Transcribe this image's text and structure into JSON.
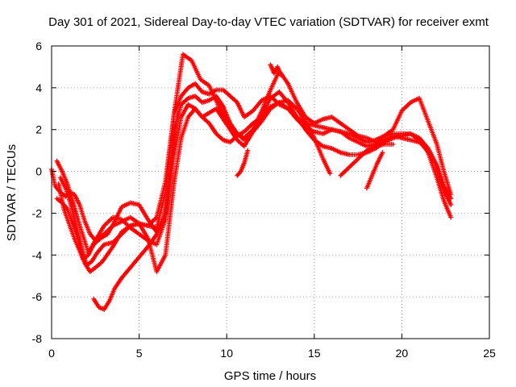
{
  "chart_data": {
    "type": "scatter",
    "title": "Day 301 of 2021, Sidereal Day-to-day VTEC variation (SDTVAR) for receiver exmt",
    "xlabel": "GPS time / hours",
    "ylabel": "SDTVAR / TECUs",
    "xlim": [
      0,
      25
    ],
    "ylim": [
      -8,
      6
    ],
    "xticks": [
      0,
      5,
      10,
      15,
      20,
      25
    ],
    "yticks": [
      -8,
      -6,
      -4,
      -2,
      0,
      2,
      4,
      6
    ],
    "grid": true,
    "marker": "+",
    "color": "#ff0000",
    "series": [
      {
        "x": [
          0.0,
          0.2,
          0.5,
          0.8,
          1.0,
          1.3,
          1.6,
          1.9,
          2.2,
          2.5,
          3.0,
          3.5,
          4.0,
          4.5,
          5.0,
          5.5,
          6.0,
          6.5,
          7.0,
          7.4,
          7.8,
          8.2,
          8.6,
          9.0,
          9.4,
          9.8,
          10.2,
          10.6,
          11.0,
          11.5,
          12.0,
          12.5,
          13.0,
          13.5,
          14.0,
          14.5,
          15.0,
          15.5,
          16.0,
          16.5,
          17.0,
          17.5,
          18.0,
          18.5,
          19.0,
          19.5,
          20.0,
          20.5,
          21.0,
          21.5,
          22.0,
          22.4,
          22.8
        ],
        "y": [
          0.1,
          -0.7,
          -1.0,
          -1.2,
          -1.0,
          -1.1,
          -1.6,
          -2.4,
          -3.0,
          -3.3,
          -3.0,
          -2.6,
          -2.4,
          -2.2,
          -2.5,
          -2.6,
          -2.2,
          -0.5,
          2.8,
          3.6,
          4.0,
          4.2,
          3.8,
          3.7,
          3.9,
          3.9,
          3.6,
          3.3,
          2.6,
          2.9,
          3.4,
          3.6,
          3.2,
          3.0,
          2.6,
          2.3,
          2.2,
          2.1,
          2.0,
          1.9,
          1.8,
          1.6,
          1.4,
          1.5,
          1.7,
          1.8,
          1.8,
          1.8,
          1.6,
          1.1,
          0.3,
          -0.7,
          -1.3
        ]
      },
      {
        "x": [
          0.3,
          0.6,
          0.9,
          1.2,
          1.5,
          1.8,
          2.1,
          2.4,
          2.8,
          3.2,
          3.6,
          4.0,
          4.5,
          5.0,
          5.5,
          6.0,
          6.5,
          7.0,
          7.4,
          7.8,
          8.2,
          8.6,
          9.0,
          9.4,
          9.8,
          10.2,
          10.6,
          11.0,
          11.5,
          12.0,
          12.5,
          13.0,
          13.5,
          14.0,
          14.5,
          15.0,
          15.5,
          16.0,
          16.5,
          17.0,
          17.5,
          18.0,
          18.5,
          19.0,
          19.5,
          20.0,
          20.5,
          21.0,
          21.5,
          22.0,
          22.4,
          22.8
        ],
        "y": [
          -1.3,
          -1.5,
          -1.8,
          -2.5,
          -3.2,
          -4.2,
          -4.0,
          -3.5,
          -3.2,
          -3.0,
          -2.4,
          -1.7,
          -1.5,
          -1.6,
          -2.3,
          -2.9,
          -2.0,
          2.0,
          3.2,
          3.5,
          3.6,
          3.3,
          3.4,
          3.6,
          3.1,
          2.3,
          1.8,
          1.6,
          2.0,
          2.9,
          3.9,
          4.8,
          4.2,
          3.3,
          2.6,
          2.3,
          2.5,
          2.6,
          2.3,
          2.0,
          1.7,
          1.6,
          1.4,
          1.7,
          2.0,
          2.9,
          3.3,
          3.5,
          2.4,
          1.3,
          0.0,
          -1.1
        ]
      },
      {
        "x": [
          0.3,
          0.6,
          0.9,
          1.2,
          1.5,
          1.8,
          2.1,
          2.5,
          3.0,
          3.5,
          4.0,
          4.5,
          5.0,
          5.5,
          6.0,
          6.5,
          7.0,
          7.4,
          7.8,
          8.2,
          8.6,
          9.0,
          9.4,
          9.8,
          10.2,
          10.6,
          11.0,
          11.5,
          12.0,
          12.5,
          13.0,
          13.5,
          14.0,
          14.5,
          15.0,
          15.5,
          16.0,
          16.5,
          17.0,
          17.5,
          18.0,
          18.5,
          19.0,
          19.5,
          20.0,
          20.5,
          21.0,
          21.5,
          22.0,
          22.4,
          22.8
        ],
        "y": [
          0.5,
          0.0,
          -0.6,
          -1.4,
          -2.3,
          -3.1,
          -3.9,
          -3.3,
          -2.6,
          -2.2,
          -2.3,
          -2.7,
          -3.0,
          -3.3,
          -3.5,
          -2.3,
          0.8,
          2.6,
          3.2,
          3.0,
          2.6,
          2.8,
          3.0,
          2.5,
          2.0,
          1.5,
          1.2,
          1.9,
          2.7,
          3.5,
          3.8,
          3.3,
          2.6,
          2.0,
          1.5,
          1.2,
          1.1,
          0.9,
          0.8,
          0.8,
          0.9,
          1.1,
          1.4,
          1.6,
          1.7,
          1.8,
          1.5,
          0.9,
          -0.3,
          -1.4,
          -2.2
        ]
      },
      {
        "x": [
          0.5,
          0.8,
          1.1,
          1.4,
          1.7,
          2.0,
          2.3,
          2.6,
          3.0,
          3.5,
          4.0,
          4.5,
          5.0,
          5.5,
          6.0,
          6.5,
          7.0,
          7.4,
          7.8,
          8.2,
          8.6,
          9.0,
          9.4,
          9.8,
          10.2,
          10.6,
          11.0,
          11.5,
          12.0,
          12.5,
          13.0,
          13.5,
          14.0,
          14.5,
          15.0,
          15.5,
          16.0,
          16.5,
          17.0,
          17.5,
          18.0,
          18.5,
          19.0,
          19.5,
          20.0,
          20.5,
          21.0,
          21.5,
          22.0,
          22.4,
          22.8
        ],
        "y": [
          -0.3,
          -0.8,
          -1.6,
          -2.6,
          -3.6,
          -4.5,
          -4.3,
          -3.9,
          -3.5,
          -3.4,
          -3.0,
          -2.6,
          -2.5,
          -3.2,
          -4.8,
          -4.0,
          -0.5,
          1.6,
          2.6,
          3.0,
          2.6,
          2.3,
          1.8,
          1.5,
          1.4,
          1.7,
          1.9,
          2.3,
          2.6,
          3.1,
          3.3,
          3.0,
          2.5,
          2.1,
          1.9,
          1.8,
          2.0,
          1.9,
          1.6,
          1.4,
          1.2,
          1.3,
          1.5,
          1.7,
          1.6,
          1.5,
          1.4,
          1.0,
          0.2,
          -0.9,
          -1.6
        ]
      },
      {
        "x": [
          0.4,
          0.7,
          1.0,
          1.3,
          1.6,
          1.9,
          2.2,
          2.5,
          2.8,
          3.0,
          3.5,
          4.0,
          4.5,
          5.0,
          5.5,
          6.0,
          6.5,
          7.0,
          7.5,
          8.0,
          8.5,
          9.0,
          9.5,
          10.0,
          10.5,
          11.0,
          11.5,
          12.0,
          12.5,
          13.0,
          13.5,
          14.0,
          14.5,
          15.0,
          15.5,
          15.9
        ],
        "y": [
          -0.6,
          -1.8,
          -2.5,
          -3.2,
          -3.8,
          -4.4,
          -4.8,
          -4.6,
          -4.4,
          -4.2,
          -3.6,
          -2.9,
          -2.6,
          -2.5,
          -2.6,
          -2.7,
          -1.0,
          2.8,
          5.6,
          5.3,
          4.4,
          4.1,
          3.2,
          2.4,
          1.9,
          1.5,
          1.9,
          2.4,
          3.0,
          3.3,
          3.4,
          3.0,
          2.4,
          1.6,
          0.6,
          -0.1
        ]
      },
      {
        "x": [
          2.4,
          2.7,
          3.0,
          3.3,
          3.6,
          4.0,
          4.4,
          4.8,
          5.2,
          5.6,
          6.0,
          6.4,
          6.8,
          7.2
        ],
        "y": [
          -6.1,
          -6.5,
          -6.6,
          -6.2,
          -5.6,
          -5.1,
          -4.7,
          -4.3,
          -3.9,
          -3.5,
          -3.0,
          -2.4,
          0.5,
          2.8
        ]
      },
      {
        "x": [
          16.5,
          17.0,
          17.5,
          18.0,
          18.5,
          19.0,
          19.5
        ],
        "y": [
          -0.2,
          0.2,
          0.6,
          1.0,
          1.2,
          1.3,
          1.3
        ]
      },
      {
        "x": [
          10.6,
          10.8,
          11.0,
          11.2
        ],
        "y": [
          -0.2,
          0.0,
          0.4,
          1.0
        ]
      },
      {
        "x": [
          12.5,
          12.7,
          12.9,
          13.1
        ],
        "y": [
          5.1,
          4.7,
          5.0,
          4.6
        ]
      },
      {
        "x": [
          18.0,
          18.3,
          18.6,
          18.9
        ],
        "y": [
          -0.8,
          -0.2,
          0.4,
          0.9
        ]
      }
    ]
  }
}
